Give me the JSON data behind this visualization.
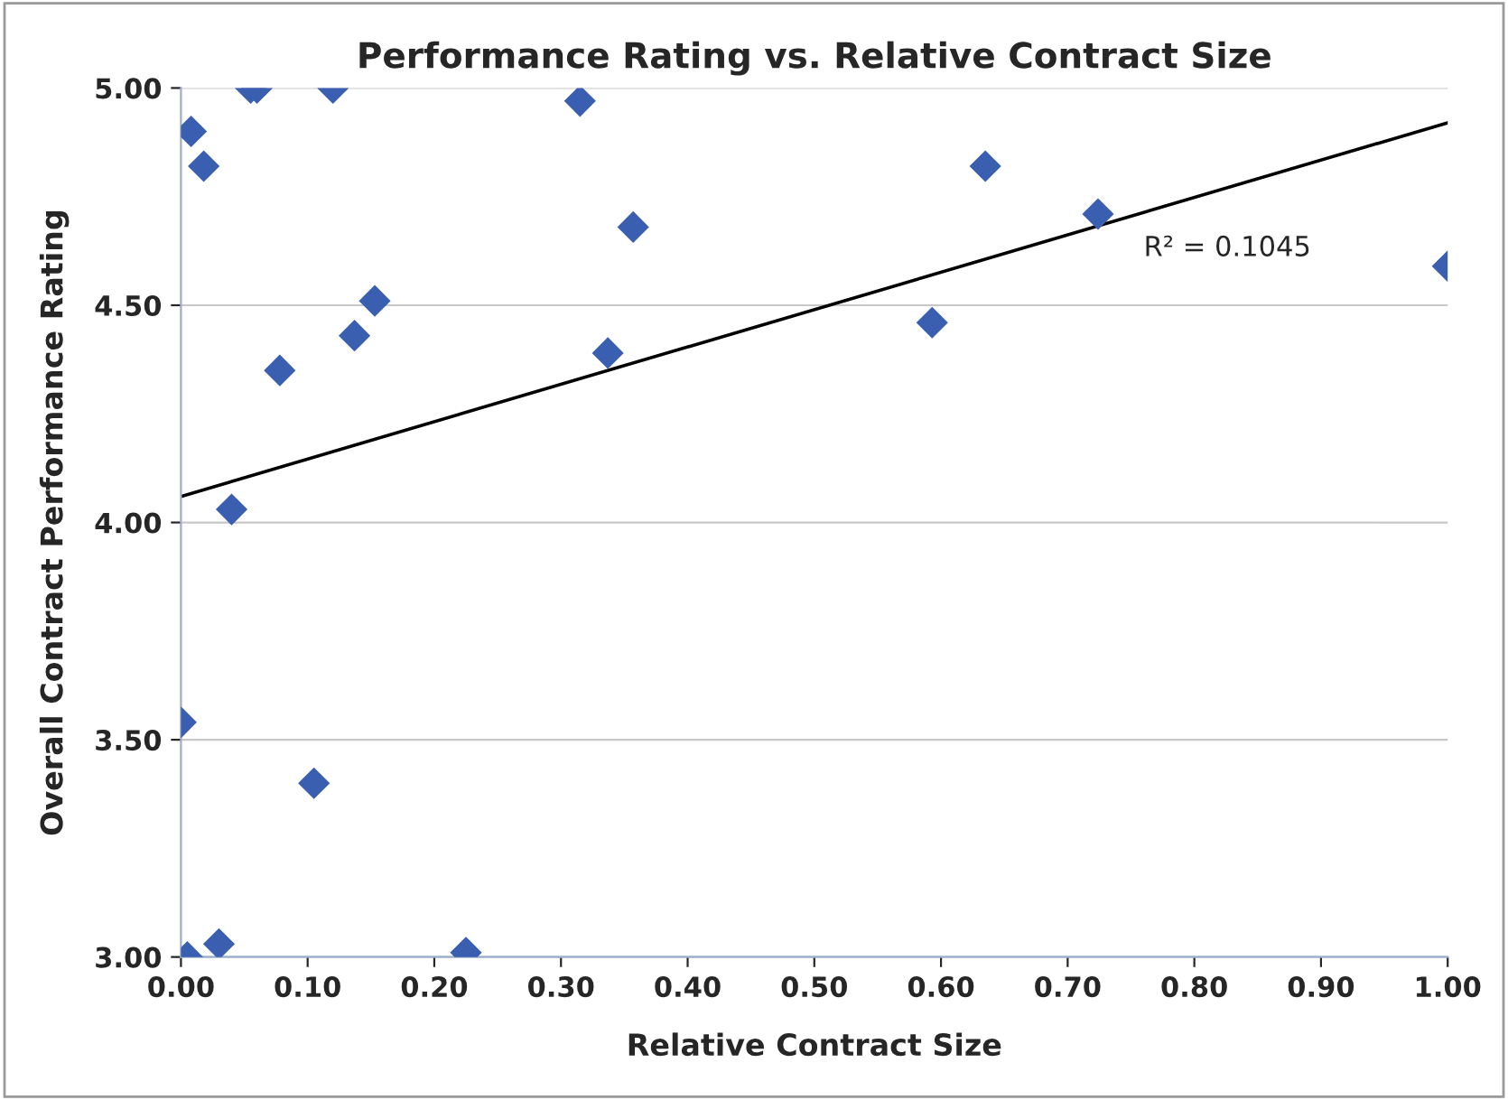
{
  "chart_data": {
    "type": "scatter",
    "title": "Performance Rating vs. Relative Contract Size",
    "xlabel": "Relative Contract Size",
    "ylabel": "Overall Contract Performance Rating",
    "series": [
      {
        "color": "#3a5fb0",
        "marker": "diamond",
        "x": [
          0.0,
          0.005,
          0.008,
          0.018,
          0.03,
          0.04,
          0.055,
          0.06,
          0.078,
          0.105,
          0.12,
          0.137,
          0.153,
          0.225,
          0.315,
          0.337,
          0.357,
          0.593,
          0.635,
          0.724,
          1.0
        ],
        "values": [
          3.54,
          3.0,
          4.9,
          4.82,
          3.03,
          4.03,
          5.0,
          5.0,
          4.35,
          3.4,
          5.0,
          4.43,
          4.51,
          3.01,
          4.97,
          4.39,
          4.68,
          4.46,
          4.82,
          4.71,
          4.59
        ]
      },
      {
        "type": "line",
        "color": "#000000",
        "marker": "none",
        "x": [
          0.0,
          1.0
        ],
        "values": [
          4.06,
          4.92
        ]
      }
    ],
    "annotations": [
      "R² = 0.1045"
    ],
    "xlim": [
      0.0,
      1.0
    ],
    "ylim": [
      3.0,
      5.0
    ],
    "xticks": [
      {
        "value": 0.0,
        "label": "0.00"
      },
      {
        "value": 0.1,
        "label": "0.10"
      },
      {
        "value": 0.2,
        "label": "0.20"
      },
      {
        "value": 0.3,
        "label": "0.30"
      },
      {
        "value": 0.4,
        "label": "0.40"
      },
      {
        "value": 0.5,
        "label": "0.50"
      },
      {
        "value": 0.6,
        "label": "0.60"
      },
      {
        "value": 0.7,
        "label": "0.70"
      },
      {
        "value": 0.8,
        "label": "0.80"
      },
      {
        "value": 0.9,
        "label": "0.90"
      },
      {
        "value": 1.0,
        "label": "1.00"
      }
    ],
    "yticks": [
      {
        "value": 3.0,
        "label": "3.00"
      },
      {
        "value": 3.5,
        "label": "3.50"
      },
      {
        "value": 4.0,
        "label": "4.00"
      },
      {
        "value": 4.5,
        "label": "4.50"
      },
      {
        "value": 5.0,
        "label": "5.00"
      }
    ],
    "grid": "y",
    "legend": false
  }
}
